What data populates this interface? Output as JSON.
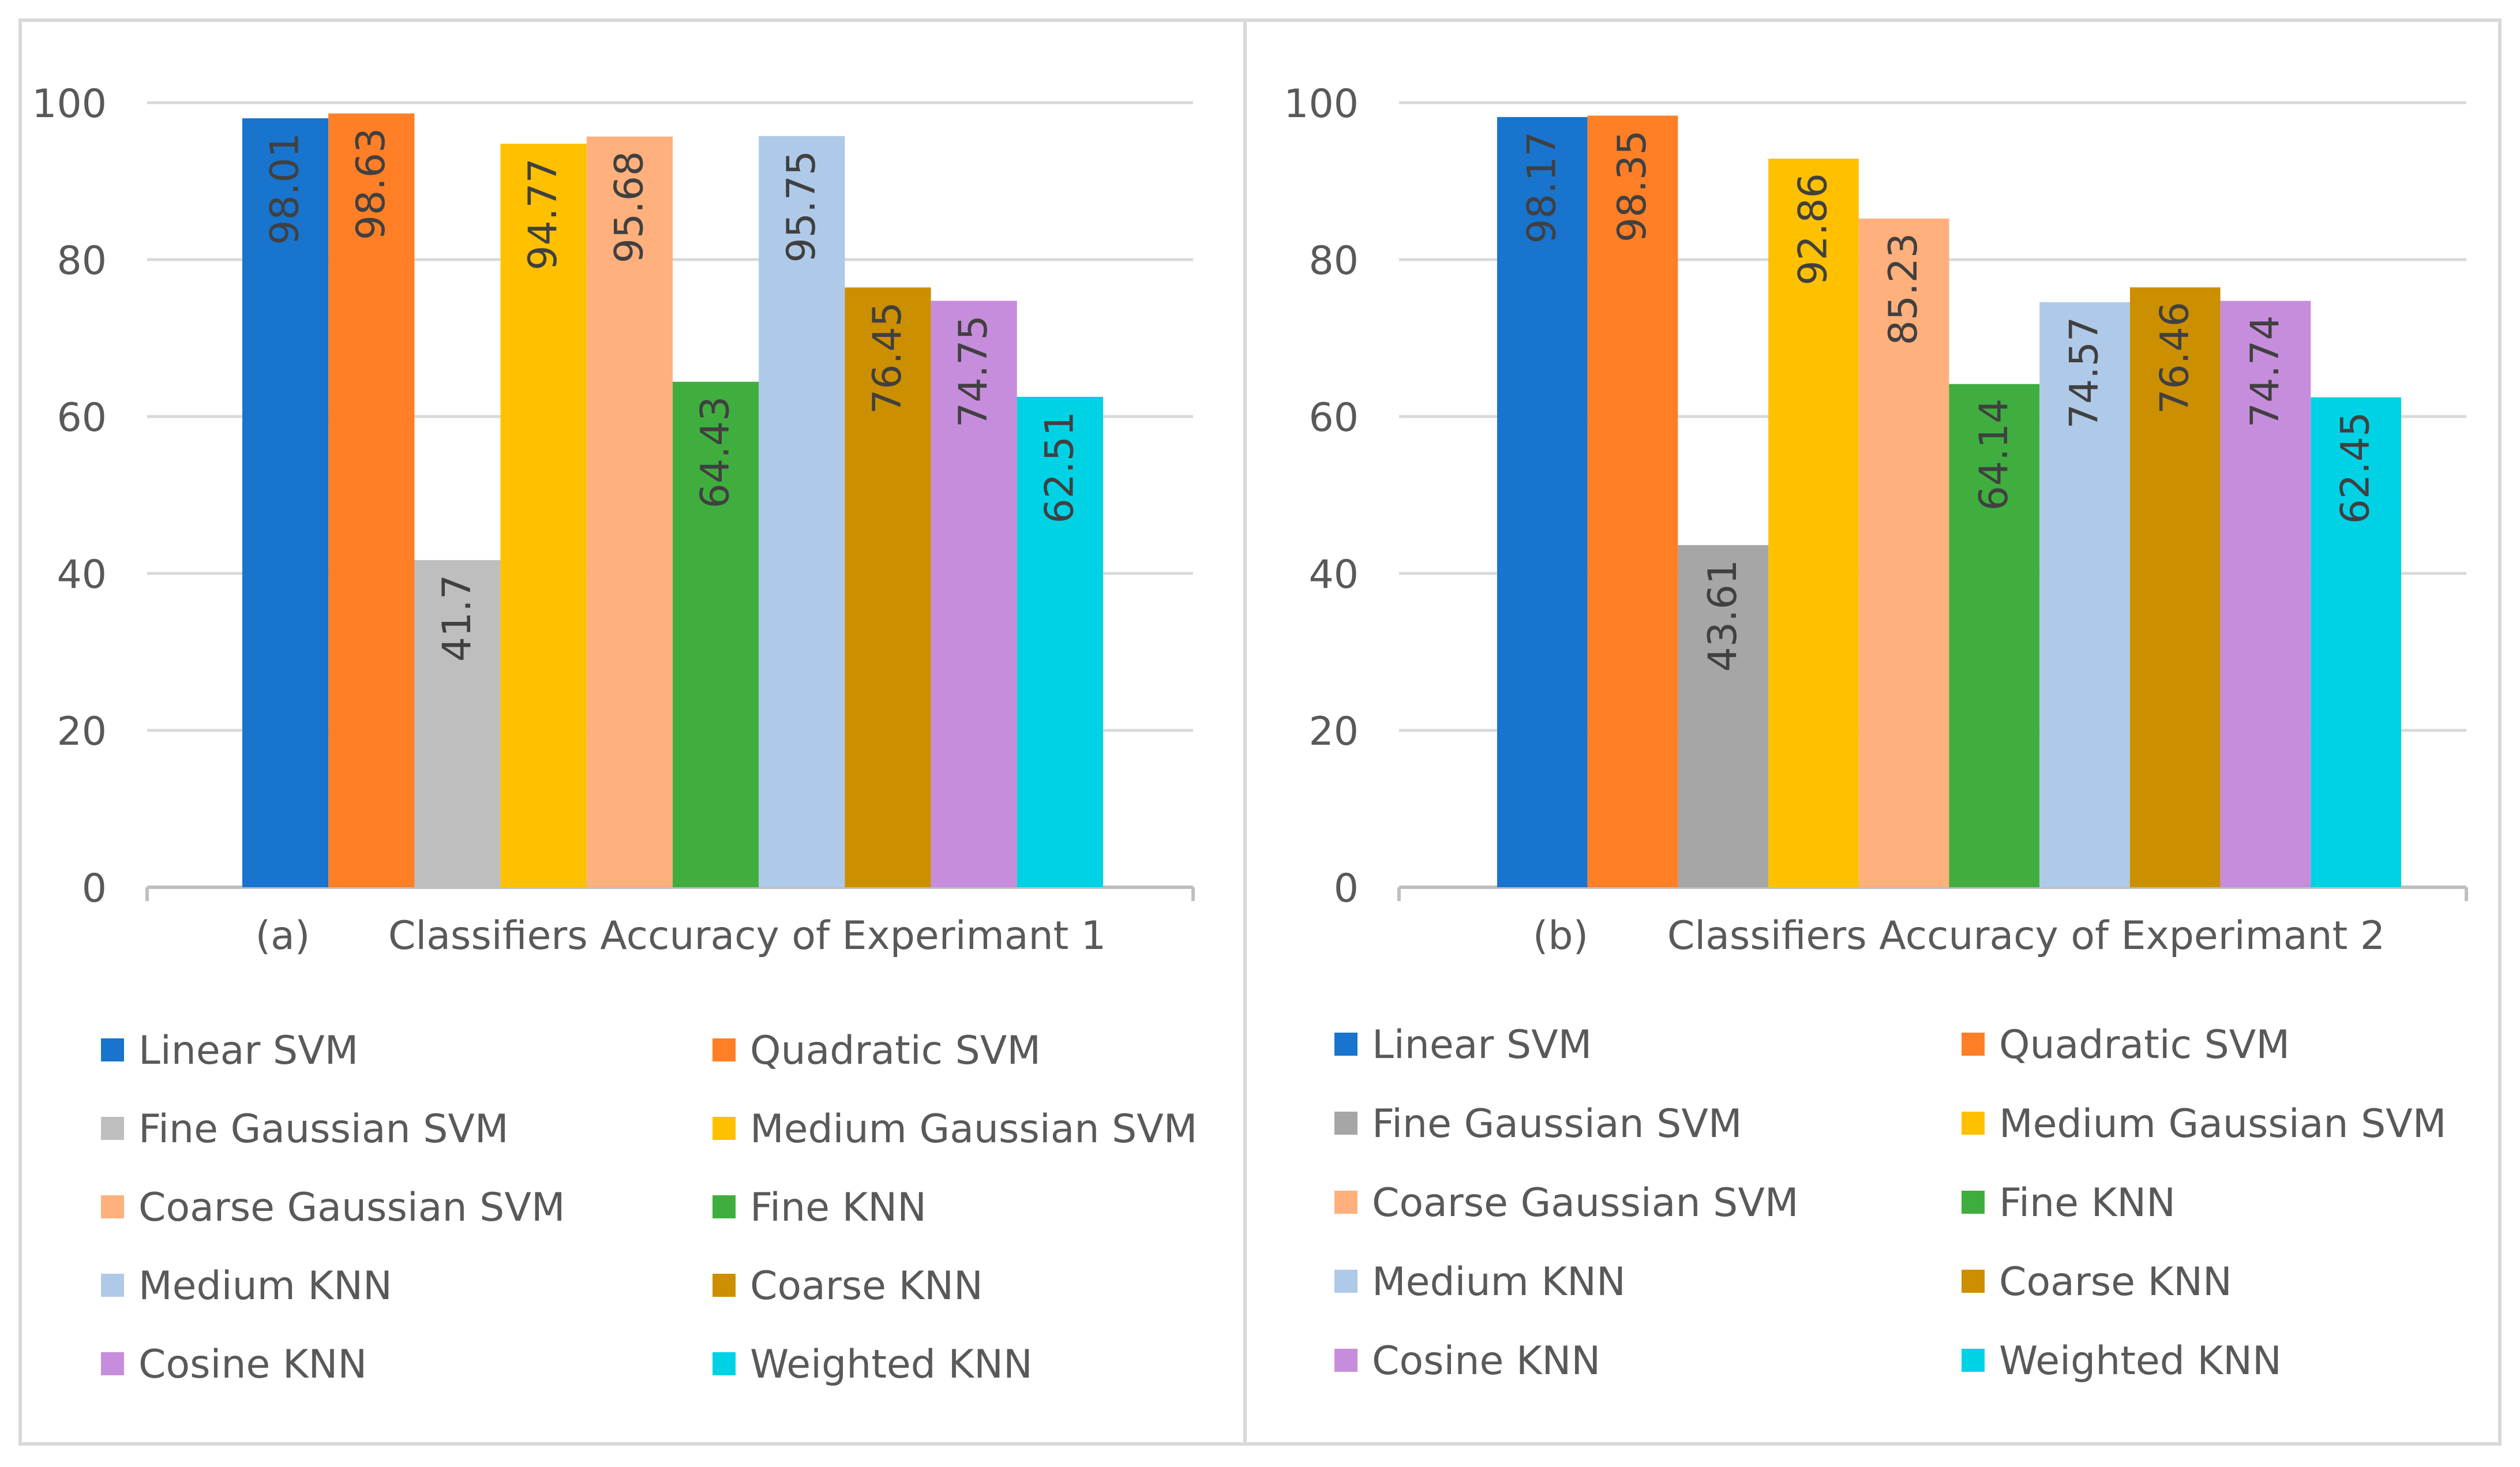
{
  "chart_data": [
    {
      "type": "bar",
      "panel_label": "(a)",
      "title": "Classifiers Accuracy of Experimant 1",
      "xlabel": "",
      "ylabel": "",
      "ylim": [
        0,
        100
      ],
      "yticks": [
        0,
        20,
        40,
        60,
        80,
        100
      ],
      "grid": true,
      "legend_position": "bottom",
      "categories": [
        "Linear SVM",
        "Quadratic SVM",
        "Fine Gaussian SVM",
        "Medium Gaussian SVM",
        "Coarse Gaussian SVM",
        "Fine KNN",
        "Medium KNN",
        "Coarse KNN",
        "Cosine KNN",
        "Weighted KNN"
      ],
      "values": [
        98.01,
        98.63,
        41.7,
        94.77,
        95.68,
        64.43,
        95.75,
        76.45,
        74.75,
        62.51
      ],
      "value_labels": [
        "98.01",
        "98.63",
        "41.7",
        "94.77",
        "95.68",
        "64.43",
        "95.75",
        "76.45",
        "74.75",
        "62.51"
      ],
      "colors": [
        "#1874CD",
        "#FF7F27",
        "#BEBEBE",
        "#FFC000",
        "#FFB07C",
        "#3FAE3F",
        "#AFC9E8",
        "#CC8F00",
        "#C78DDD",
        "#00D2E6"
      ]
    },
    {
      "type": "bar",
      "panel_label": "(b)",
      "title": "Classifiers Accuracy of Experimant 2",
      "xlabel": "",
      "ylabel": "",
      "ylim": [
        0,
        100
      ],
      "yticks": [
        0,
        20,
        40,
        60,
        80,
        100
      ],
      "grid": true,
      "legend_position": "bottom",
      "categories": [
        "Linear SVM",
        "Quadratic SVM",
        "Fine Gaussian SVM",
        "Medium Gaussian SVM",
        "Coarse Gaussian SVM",
        "Fine KNN",
        "Medium KNN",
        "Coarse KNN",
        "Cosine KNN",
        "Weighted KNN"
      ],
      "values": [
        98.17,
        98.35,
        43.61,
        92.86,
        85.23,
        64.14,
        74.57,
        76.46,
        74.74,
        62.45
      ],
      "value_labels": [
        "98.17",
        "98.35",
        "43.61",
        "92.86",
        "85.23",
        "64.14",
        "74.57",
        "76.46",
        "74.74",
        "62.45"
      ],
      "colors": [
        "#1874CD",
        "#FF7F27",
        "#A6A6A6",
        "#FFC000",
        "#FFB07C",
        "#3FAE3F",
        "#AFC9E8",
        "#CC8F00",
        "#C78DDD",
        "#00D2E6"
      ]
    }
  ]
}
